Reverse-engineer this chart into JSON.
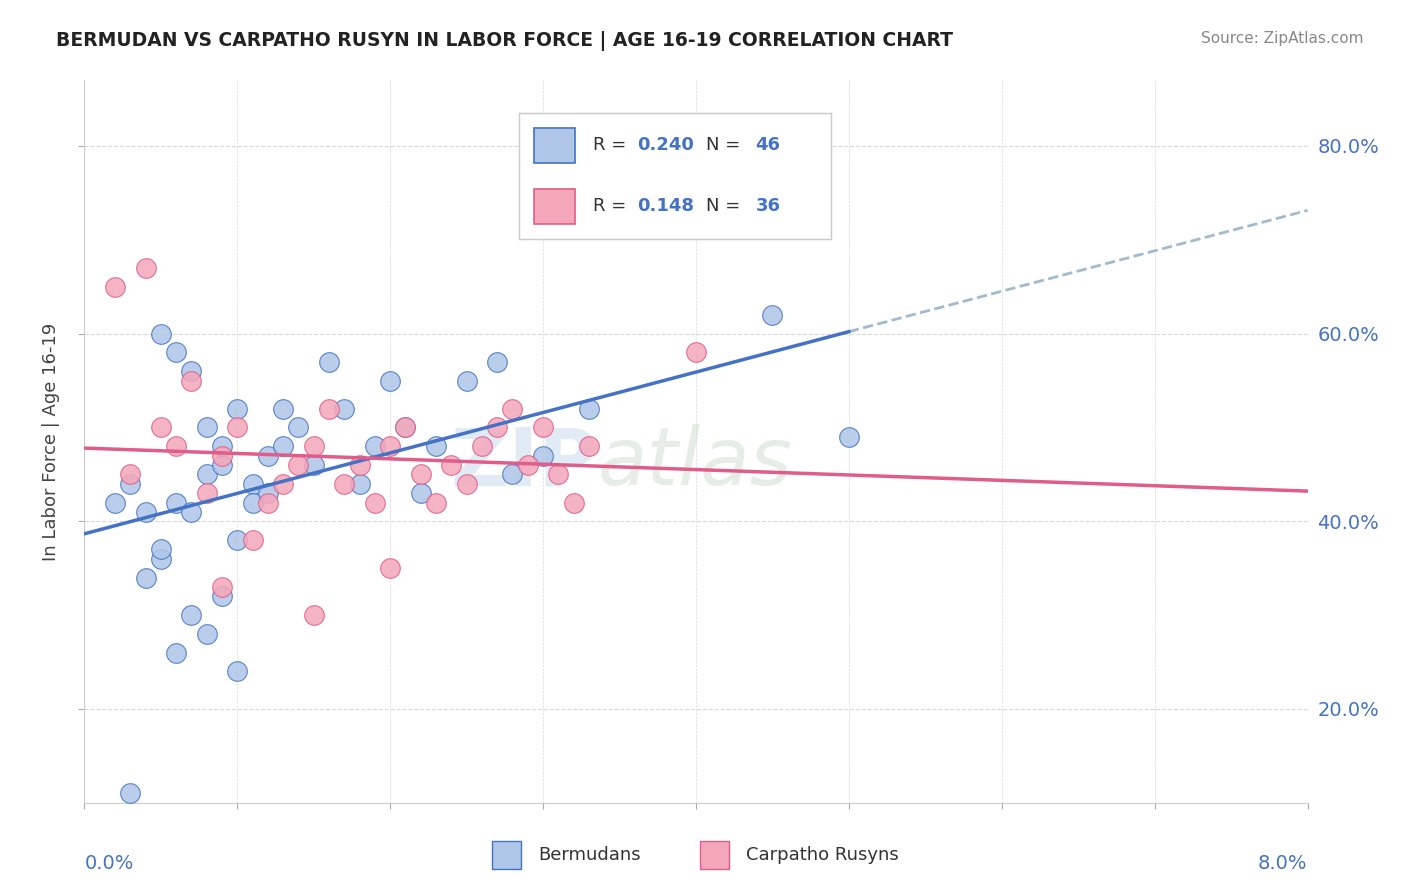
{
  "title": "BERMUDAN VS CARPATHO RUSYN IN LABOR FORCE | AGE 16-19 CORRELATION CHART",
  "source": "Source: ZipAtlas.com",
  "ylabel": "In Labor Force | Age 16-19",
  "xmin": 0.0,
  "xmax": 0.08,
  "ymin": 0.1,
  "ymax": 0.87,
  "yticks": [
    0.2,
    0.4,
    0.6,
    0.8
  ],
  "ytick_labels": [
    "20.0%",
    "40.0%",
    "60.0%",
    "80.0%"
  ],
  "bermudans_color": "#aec6e8",
  "carpatho_color": "#f4a7b9",
  "trend_blue": "#4472c4",
  "trend_gray": "#a0bbd0",
  "trend_pink": "#e05c8a",
  "watermark_zip": "ZIP",
  "watermark_atlas": "atlas",
  "background_color": "#ffffff",
  "grid_color": "#d8d8d8",
  "r1": 0.24,
  "n1": 46,
  "r2": 0.148,
  "n2": 36,
  "bermudans_x": [
    0.002,
    0.003,
    0.004,
    0.005,
    0.005,
    0.006,
    0.006,
    0.007,
    0.007,
    0.008,
    0.008,
    0.009,
    0.009,
    0.01,
    0.01,
    0.011,
    0.011,
    0.012,
    0.012,
    0.013,
    0.013,
    0.014,
    0.015,
    0.016,
    0.017,
    0.018,
    0.019,
    0.02,
    0.021,
    0.022,
    0.023,
    0.025,
    0.027,
    0.028,
    0.03,
    0.033,
    0.005,
    0.045,
    0.05,
    0.003,
    0.007,
    0.004,
    0.006,
    0.008,
    0.01,
    0.009
  ],
  "bermudans_y": [
    0.42,
    0.44,
    0.41,
    0.36,
    0.6,
    0.58,
    0.42,
    0.56,
    0.41,
    0.45,
    0.5,
    0.46,
    0.48,
    0.52,
    0.38,
    0.44,
    0.42,
    0.47,
    0.43,
    0.52,
    0.48,
    0.5,
    0.46,
    0.57,
    0.52,
    0.44,
    0.48,
    0.55,
    0.5,
    0.43,
    0.48,
    0.55,
    0.57,
    0.45,
    0.47,
    0.52,
    0.37,
    0.62,
    0.49,
    0.11,
    0.3,
    0.34,
    0.26,
    0.28,
    0.24,
    0.32
  ],
  "carpatho_x": [
    0.002,
    0.003,
    0.004,
    0.005,
    0.006,
    0.007,
    0.008,
    0.009,
    0.01,
    0.011,
    0.012,
    0.013,
    0.014,
    0.015,
    0.016,
    0.017,
    0.018,
    0.019,
    0.02,
    0.021,
    0.022,
    0.023,
    0.024,
    0.025,
    0.026,
    0.027,
    0.028,
    0.029,
    0.03,
    0.031,
    0.032,
    0.033,
    0.04,
    0.009,
    0.02,
    0.015
  ],
  "carpatho_y": [
    0.65,
    0.45,
    0.67,
    0.5,
    0.48,
    0.55,
    0.43,
    0.47,
    0.5,
    0.38,
    0.42,
    0.44,
    0.46,
    0.48,
    0.52,
    0.44,
    0.46,
    0.42,
    0.48,
    0.5,
    0.45,
    0.42,
    0.46,
    0.44,
    0.48,
    0.5,
    0.52,
    0.46,
    0.5,
    0.45,
    0.42,
    0.48,
    0.58,
    0.33,
    0.35,
    0.3
  ]
}
